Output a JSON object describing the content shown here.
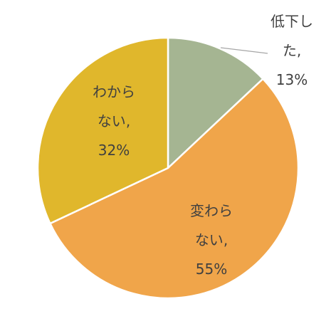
{
  "chart_data": {
    "type": "pie",
    "categories": [
      "低下した",
      "変わらない",
      "わからない"
    ],
    "values": [
      13,
      55,
      32
    ],
    "value_labels": [
      "13%",
      "55%",
      "32%"
    ],
    "label_separator": ",",
    "colors": [
      "#a5b592",
      "#f0a54a",
      "#e0b72c"
    ]
  }
}
